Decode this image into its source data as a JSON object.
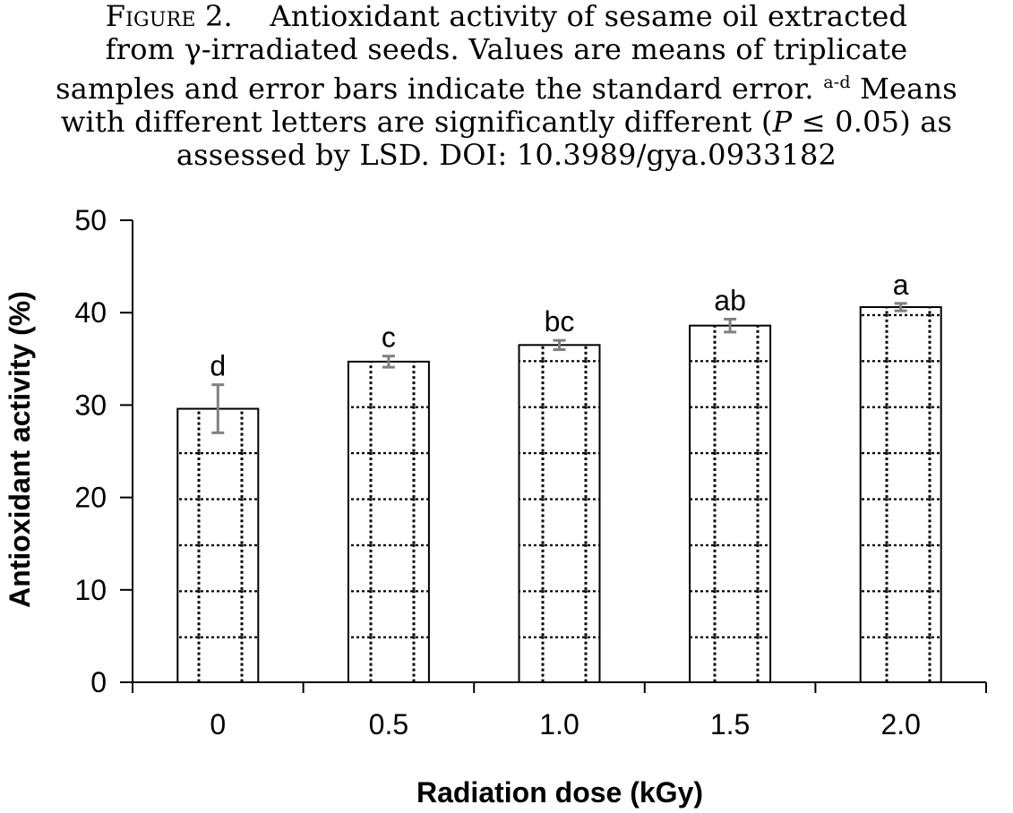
{
  "caption": {
    "figure_label": "Figure 2.",
    "line1_text": "Antioxidant activity of sesame oil extracted",
    "line2": "from γ-irradiated seeds. Values are means of triplicate",
    "line3a": "samples and error bars indicate the standard error.",
    "line3_sup": "a-d",
    "line3b": "Means",
    "line4a": "with different letters are significantly different (",
    "line4_p": "P",
    "line4b": " ≤ 0.05) as",
    "line5": "assessed by LSD. DOI: 10.3989/gya.0933182"
  },
  "chart_data": {
    "type": "bar",
    "title": "",
    "xlabel": "Radiation dose (kGy)",
    "ylabel": "Antioxidant activity (%)",
    "ylim": [
      0,
      50
    ],
    "yticks": [
      0,
      10,
      20,
      30,
      40,
      50
    ],
    "categories": [
      "0",
      "0.5",
      "1.0",
      "1.5",
      "2.0"
    ],
    "series": [
      {
        "values": [
          29.6,
          34.7,
          36.5,
          38.6,
          40.6
        ],
        "errors": [
          2.6,
          0.6,
          0.5,
          0.7,
          0.4
        ],
        "labels": [
          "d",
          "c",
          "bc",
          "ab",
          "a"
        ]
      }
    ],
    "bar_fill": "dotted grid pattern",
    "error_bar_color": "#808080",
    "grid": false,
    "legend": "none"
  }
}
